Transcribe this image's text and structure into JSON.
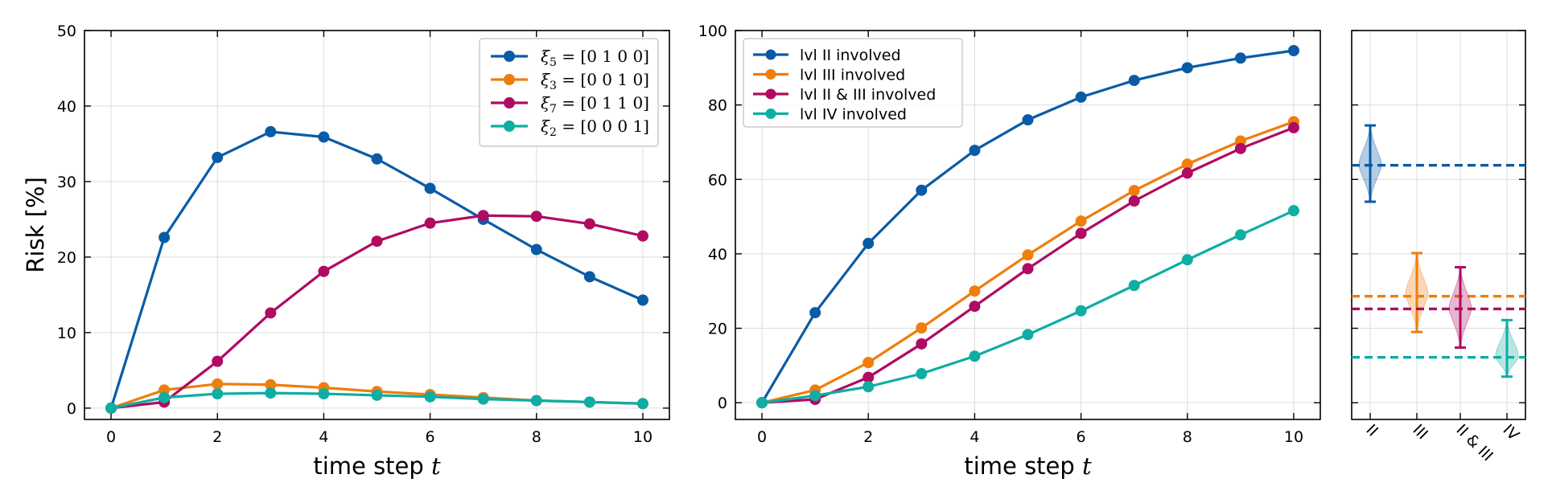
{
  "colors": {
    "blue": "#0a5ba6",
    "orange": "#f07d0c",
    "magenta": "#b00a62",
    "teal": "#0fada3",
    "grid": "#dddddd"
  },
  "chart_data": [
    {
      "type": "line",
      "xlabel": "time step ",
      "xlabel_var": "t",
      "ylabel": "Risk [%]",
      "xlim": [
        -0.5,
        10.5
      ],
      "ylim": [
        -1.5,
        50
      ],
      "xticks": [
        0,
        2,
        4,
        6,
        8,
        10
      ],
      "yticks": [
        0,
        10,
        20,
        30,
        40,
        50
      ],
      "grid": true,
      "legend_position": "top-right",
      "x": [
        0,
        1,
        2,
        3,
        4,
        5,
        6,
        7,
        8,
        9,
        10
      ],
      "series": [
        {
          "name": "ξ5 = [0 1 0 0]",
          "name_main": "ξ",
          "name_sub": "5",
          "name_rest": " = [0 1 0 0]",
          "color": "#0a5ba6",
          "values": [
            0,
            22.6,
            33.2,
            36.6,
            35.9,
            33.0,
            29.1,
            25.0,
            21.0,
            17.4,
            14.3
          ]
        },
        {
          "name": "ξ3 = [0 0 1 0]",
          "name_main": "ξ",
          "name_sub": "3",
          "name_rest": " = [0 0 1 0]",
          "color": "#f07d0c",
          "values": [
            0,
            2.4,
            3.2,
            3.1,
            2.7,
            2.2,
            1.8,
            1.4,
            1.0,
            0.8,
            0.6
          ]
        },
        {
          "name": "ξ7 = [0 1 1 0]",
          "name_main": "ξ",
          "name_sub": "7",
          "name_rest": " = [0 1 1 0]",
          "color": "#b00a62",
          "values": [
            0,
            0.8,
            6.2,
            12.6,
            18.1,
            22.1,
            24.5,
            25.5,
            25.4,
            24.4,
            22.8
          ]
        },
        {
          "name": "ξ2 = [0 0 0 1]",
          "name_main": "ξ",
          "name_sub": "2",
          "name_rest": " = [0 0 0 1]",
          "color": "#0fada3",
          "values": [
            0,
            1.4,
            1.9,
            2.0,
            1.9,
            1.7,
            1.5,
            1.2,
            1.0,
            0.8,
            0.6
          ]
        }
      ]
    },
    {
      "type": "line",
      "xlabel": "time step ",
      "xlabel_var": "t",
      "xlim": [
        -0.5,
        10.5
      ],
      "ylim": [
        -4.5,
        100
      ],
      "xticks": [
        0,
        2,
        4,
        6,
        8,
        10
      ],
      "yticks": [
        0,
        20,
        40,
        60,
        80,
        100
      ],
      "grid": true,
      "legend_position": "top-left",
      "x": [
        0,
        1,
        2,
        3,
        4,
        5,
        6,
        7,
        8,
        9,
        10
      ],
      "series": [
        {
          "name": "lvl II involved",
          "color": "#0a5ba6",
          "values": [
            0,
            24.2,
            42.8,
            57.1,
            67.8,
            76.0,
            82.1,
            86.6,
            90.0,
            92.6,
            94.6
          ]
        },
        {
          "name": "lvl III involved",
          "color": "#f07d0c",
          "values": [
            0,
            3.4,
            10.8,
            20.1,
            30.0,
            39.7,
            48.8,
            57.0,
            64.1,
            70.3,
            75.5
          ]
        },
        {
          "name": "lvl II & III involved",
          "color": "#b00a62",
          "values": [
            0,
            0.9,
            6.8,
            15.8,
            25.9,
            36.0,
            45.5,
            54.2,
            61.7,
            68.3,
            73.9
          ]
        },
        {
          "name": "lvl IV involved",
          "color": "#0fada3",
          "values": [
            0,
            1.9,
            4.3,
            7.8,
            12.5,
            18.3,
            24.7,
            31.5,
            38.4,
            45.1,
            51.6
          ]
        }
      ]
    },
    {
      "type": "violin",
      "categories": [
        "II",
        "III",
        "II & III",
        "IV"
      ],
      "ylim": [
        -4.5,
        100
      ],
      "grid": true,
      "series": [
        {
          "name": "II",
          "color": "#0a5ba6",
          "median": 64.0,
          "min": 54.0,
          "max": 74.5,
          "reference": 63.8
        },
        {
          "name": "III",
          "color": "#f07d0c",
          "median": 29.5,
          "min": 19.0,
          "max": 40.2,
          "reference": 28.6
        },
        {
          "name": "II & III",
          "color": "#b00a62",
          "median": 25.5,
          "min": 14.8,
          "max": 36.4,
          "reference": 25.2
        },
        {
          "name": "IV",
          "color": "#0fada3",
          "median": 12.8,
          "min": 7.0,
          "max": 22.2,
          "reference": 12.2
        }
      ]
    }
  ]
}
